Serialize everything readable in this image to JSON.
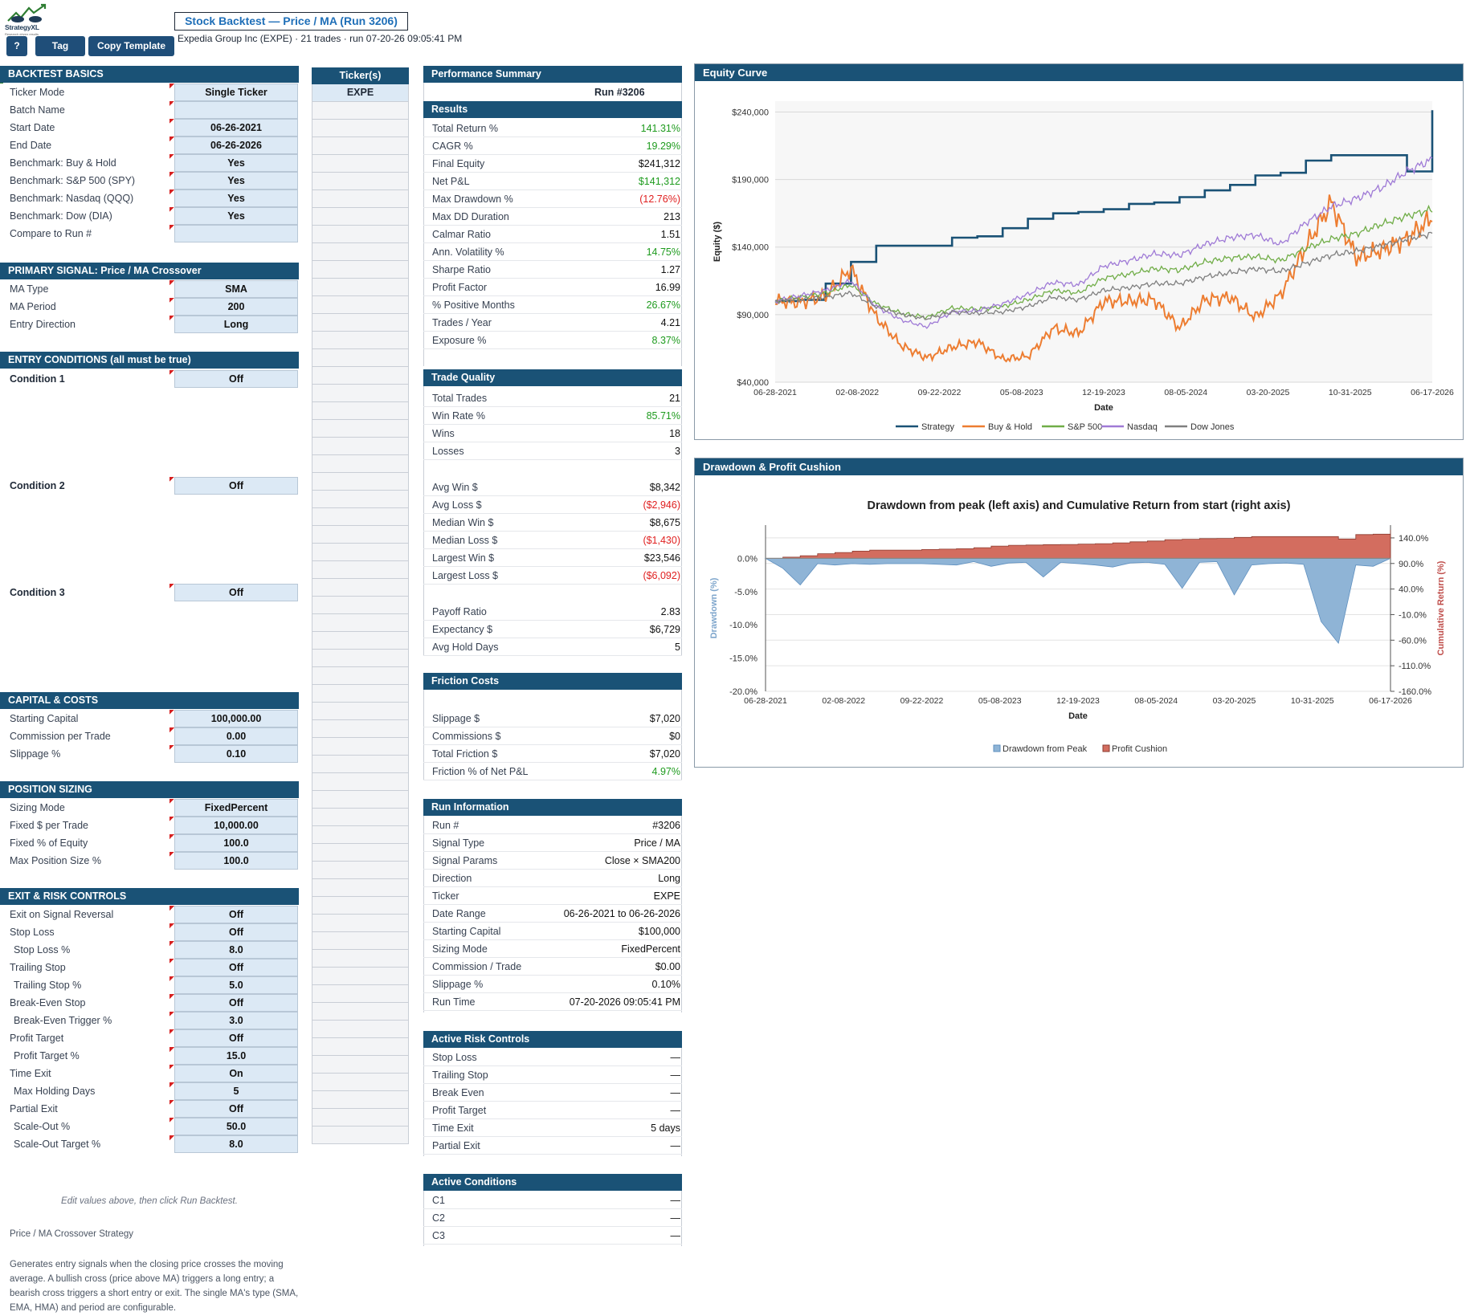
{
  "header": {
    "logo_text": "StrategyXL",
    "logo_sub": "Research driven results",
    "title": "Stock Backtest — Price / MA  (Run 3206)",
    "subtitle": "Expedia Group Inc (EXPE) · 21 trades · run 07-20-26 09:05:41 PM",
    "buttons": {
      "help": "?",
      "tag": "Tag",
      "copy": "Copy Template"
    }
  },
  "colors": {
    "header_bg": "#1a5276",
    "input_bg": "#dce9f5",
    "positive": "#1e9b1e",
    "negative": "#e02020",
    "strategy": "#1a5276",
    "buy_hold": "#ed7d31",
    "sp500": "#70ad47",
    "nasdaq": "#9f7ad6",
    "dow": "#7f7f7f"
  },
  "basics": {
    "title": "BACKTEST BASICS",
    "rows": [
      {
        "label": "Ticker Mode",
        "value": "Single Ticker"
      },
      {
        "label": "Batch Name",
        "value": ""
      },
      {
        "label": "Start Date",
        "value": "06-26-2021"
      },
      {
        "label": "End Date",
        "value": "06-26-2026"
      },
      {
        "label": "Benchmark: Buy & Hold",
        "value": "Yes"
      },
      {
        "label": "Benchmark: S&P 500 (SPY)",
        "value": "Yes"
      },
      {
        "label": "Benchmark: Nasdaq (QQQ)",
        "value": "Yes"
      },
      {
        "label": "Benchmark: Dow (DIA)",
        "value": "Yes"
      },
      {
        "label": "Compare to Run #",
        "value": ""
      }
    ]
  },
  "primary": {
    "title": "PRIMARY SIGNAL: Price / MA Crossover",
    "rows": [
      {
        "label": "MA Type",
        "value": "SMA"
      },
      {
        "label": "MA Period",
        "value": "200"
      },
      {
        "label": "Entry Direction",
        "value": "Long"
      }
    ]
  },
  "entry": {
    "title": "ENTRY CONDITIONS (all must be true)",
    "conditions": [
      {
        "label": "Condition 1",
        "value": "Off"
      },
      {
        "label": "Condition 2",
        "value": "Off"
      },
      {
        "label": "Condition 3",
        "value": "Off"
      }
    ]
  },
  "capital": {
    "title": "CAPITAL & COSTS",
    "rows": [
      {
        "label": "Starting Capital",
        "value": "100,000.00"
      },
      {
        "label": "Commission per Trade",
        "value": "0.00"
      },
      {
        "label": "Slippage %",
        "value": "0.10"
      }
    ]
  },
  "sizing": {
    "title": "POSITION SIZING",
    "rows": [
      {
        "label": "Sizing Mode",
        "value": "FixedPercent"
      },
      {
        "label": "Fixed $ per Trade",
        "value": "10,000.00"
      },
      {
        "label": "Fixed % of Equity",
        "value": "100.0"
      },
      {
        "label": "Max Position Size %",
        "value": "100.0"
      }
    ]
  },
  "exit": {
    "title": "EXIT & RISK CONTROLS",
    "rows": [
      {
        "label": "Exit on Signal Reversal",
        "value": "Off",
        "indent": false
      },
      {
        "label": "Stop Loss",
        "value": "Off",
        "indent": false
      },
      {
        "label": "Stop Loss %",
        "value": "8.0",
        "indent": true
      },
      {
        "label": "Trailing Stop",
        "value": "Off",
        "indent": false
      },
      {
        "label": "Trailing Stop %",
        "value": "5.0",
        "indent": true
      },
      {
        "label": "Break-Even Stop",
        "value": "Off",
        "indent": false
      },
      {
        "label": "Break-Even Trigger %",
        "value": "3.0",
        "indent": true
      },
      {
        "label": "Profit Target",
        "value": "Off",
        "indent": false
      },
      {
        "label": "Profit Target %",
        "value": "15.0",
        "indent": true
      },
      {
        "label": "Time Exit",
        "value": "On",
        "indent": false
      },
      {
        "label": "Max Holding Days",
        "value": "5",
        "indent": true
      },
      {
        "label": "Partial Exit",
        "value": "Off",
        "indent": false
      },
      {
        "label": "Scale-Out %",
        "value": "50.0",
        "indent": true
      },
      {
        "label": "Scale-Out Target %",
        "value": "8.0",
        "indent": true
      }
    ]
  },
  "notes": {
    "edit_hint": "Edit values above, then click Run Backtest.",
    "strategy_title": "Price / MA Crossover Strategy",
    "strategy_desc": "Generates entry signals when the closing price crosses the moving average. A bullish cross (price above MA) triggers a long entry; a bearish cross triggers a short entry or exit. The single MA's type (SMA, EMA, HMA) and period are configurable."
  },
  "tickers": {
    "header": "Ticker(s)",
    "values": [
      "EXPE"
    ]
  },
  "performance": {
    "title": "Performance Summary",
    "run_label": "Run #3206",
    "results_title": "Results",
    "results": [
      {
        "label": "Total Return %",
        "value": "141.31%",
        "tone": "pos"
      },
      {
        "label": "CAGR %",
        "value": "19.29%",
        "tone": "pos"
      },
      {
        "label": "Final Equity",
        "value": "$241,312",
        "tone": ""
      },
      {
        "label": "Net P&L",
        "value": "$141,312",
        "tone": "pos"
      },
      {
        "label": "Max Drawdown %",
        "value": "(12.76%)",
        "tone": "neg"
      },
      {
        "label": "Max DD Duration",
        "value": "213",
        "tone": ""
      },
      {
        "label": "Calmar Ratio",
        "value": "1.51",
        "tone": ""
      },
      {
        "label": "Ann. Volatility %",
        "value": "14.75%",
        "tone": "pos"
      },
      {
        "label": "Sharpe Ratio",
        "value": "1.27",
        "tone": ""
      },
      {
        "label": "Profit Factor",
        "value": "16.99",
        "tone": ""
      },
      {
        "label": "% Positive Months",
        "value": "26.67%",
        "tone": "pos"
      },
      {
        "label": "Trades / Year",
        "value": "4.21",
        "tone": ""
      },
      {
        "label": "Exposure %",
        "value": "8.37%",
        "tone": "pos"
      }
    ],
    "quality_title": "Trade Quality",
    "quality_a": [
      {
        "label": "Total Trades",
        "value": "21",
        "tone": ""
      },
      {
        "label": "Win Rate %",
        "value": "85.71%",
        "tone": "pos"
      },
      {
        "label": "Wins",
        "value": "18",
        "tone": ""
      },
      {
        "label": "Losses",
        "value": "3",
        "tone": ""
      }
    ],
    "quality_b": [
      {
        "label": "Avg Win $",
        "value": "$8,342",
        "tone": ""
      },
      {
        "label": "Avg Loss $",
        "value": "($2,946)",
        "tone": "neg"
      },
      {
        "label": "Median Win $",
        "value": "$8,675",
        "tone": ""
      },
      {
        "label": "Median Loss $",
        "value": "($1,430)",
        "tone": "neg"
      },
      {
        "label": "Largest Win $",
        "value": "$23,546",
        "tone": ""
      },
      {
        "label": "Largest Loss $",
        "value": "($6,092)",
        "tone": "neg"
      }
    ],
    "quality_c": [
      {
        "label": "Payoff Ratio",
        "value": "2.83",
        "tone": ""
      },
      {
        "label": "Expectancy $",
        "value": "$6,729",
        "tone": ""
      },
      {
        "label": "Avg Hold Days",
        "value": "5",
        "tone": ""
      }
    ],
    "friction_title": "Friction Costs",
    "friction": [
      {
        "label": "Slippage $",
        "value": "$7,020",
        "tone": ""
      },
      {
        "label": "Commissions $",
        "value": "$0",
        "tone": ""
      },
      {
        "label": "Total Friction $",
        "value": "$7,020",
        "tone": ""
      },
      {
        "label": "Friction % of Net P&L",
        "value": "4.97%",
        "tone": "pos"
      }
    ],
    "runinfo_title": "Run Information",
    "runinfo": [
      {
        "label": "Run #",
        "value": "#3206",
        "tone": ""
      },
      {
        "label": "Signal Type",
        "value": "Price / MA",
        "tone": ""
      },
      {
        "label": "Signal Params",
        "value": "Close × SMA200",
        "tone": ""
      },
      {
        "label": "Direction",
        "value": "Long",
        "tone": ""
      },
      {
        "label": "Ticker",
        "value": "EXPE",
        "tone": ""
      },
      {
        "label": "Date Range",
        "value": "06-26-2021 to 06-26-2026",
        "tone": ""
      },
      {
        "label": "Starting Capital",
        "value": "$100,000",
        "tone": ""
      },
      {
        "label": "Sizing Mode",
        "value": "FixedPercent",
        "tone": ""
      },
      {
        "label": "Commission / Trade",
        "value": "$0.00",
        "tone": ""
      },
      {
        "label": "Slippage %",
        "value": "0.10%",
        "tone": ""
      },
      {
        "label": "Run Time",
        "value": "07-20-2026 09:05:41 PM",
        "tone": ""
      }
    ],
    "risk_title": "Active Risk Controls",
    "risk": [
      {
        "label": "Stop Loss",
        "value": "—",
        "tone": ""
      },
      {
        "label": "Trailing Stop",
        "value": "—",
        "tone": ""
      },
      {
        "label": "Break Even",
        "value": "—",
        "tone": ""
      },
      {
        "label": "Profit Target",
        "value": "—",
        "tone": ""
      },
      {
        "label": "Time Exit",
        "value": "5 days",
        "tone": ""
      },
      {
        "label": "Partial Exit",
        "value": "—",
        "tone": ""
      }
    ],
    "cond_title": "Active Conditions",
    "conds": [
      {
        "label": "C1",
        "value": "—",
        "tone": ""
      },
      {
        "label": "C2",
        "value": "—",
        "tone": ""
      },
      {
        "label": "C3",
        "value": "—",
        "tone": ""
      }
    ]
  },
  "chart_data": [
    {
      "type": "line",
      "panel_title": "Equity Curve",
      "title": "",
      "xlabel": "Date",
      "ylabel": "Equity ($)",
      "ylim": [
        40000,
        255000
      ],
      "y_ticks": [
        "$240,000",
        "$190,000",
        "$140,000",
        "$90,000",
        "$40,000"
      ],
      "y_tick_values": [
        240000,
        190000,
        140000,
        90000,
        40000
      ],
      "x_ticks": [
        "06-28-2021",
        "02-08-2022",
        "09-22-2022",
        "05-08-2023",
        "12-19-2023",
        "08-05-2024",
        "03-20-2025",
        "10-31-2025",
        "06-17-2026"
      ],
      "grid": true,
      "legend": "bottom",
      "series": [
        {
          "name": "Strategy",
          "color": "#1a5276",
          "values": [
            100000,
            101000,
            113000,
            129000,
            141000,
            141000,
            141000,
            147000,
            148000,
            154000,
            161000,
            165000,
            166000,
            168000,
            172000,
            173000,
            177000,
            182000,
            186000,
            193000,
            195000,
            204000,
            208000,
            208000,
            208000,
            196000,
            241312
          ]
        },
        {
          "name": "Buy & Hold",
          "color": "#ed7d31",
          "values": [
            100000,
            99000,
            104000,
            124000,
            88000,
            67000,
            58000,
            66000,
            70000,
            57000,
            59000,
            80000,
            76000,
            100000,
            100000,
            101000,
            80000,
            101000,
            103000,
            88000,
            105000,
            140000,
            173000,
            132000,
            138000,
            146000,
            162000
          ]
        },
        {
          "name": "S&P 500",
          "color": "#70ad47",
          "values": [
            100000,
            103000,
            106000,
            112000,
            98000,
            91000,
            88000,
            95000,
            94000,
            96000,
            101000,
            108000,
            106000,
            117000,
            120000,
            124000,
            123000,
            129000,
            132000,
            133000,
            130000,
            139000,
            146000,
            150000,
            157000,
            163000,
            168000
          ]
        },
        {
          "name": "Nasdaq",
          "color": "#9f7ad6",
          "values": [
            100000,
            104000,
            108000,
            115000,
            96000,
            86000,
            81000,
            92000,
            93000,
            98000,
            105000,
            114000,
            112000,
            126000,
            130000,
            135000,
            134000,
            142000,
            147000,
            149000,
            142000,
            158000,
            170000,
            176000,
            184000,
            196000,
            205000
          ]
        },
        {
          "name": "Dow Jones",
          "color": "#7f7f7f",
          "values": [
            100000,
            101000,
            103000,
            106000,
            96000,
            90000,
            87000,
            92000,
            91000,
            92000,
            96000,
            103000,
            101000,
            108000,
            110000,
            113000,
            113000,
            118000,
            121000,
            124000,
            122000,
            128000,
            134000,
            137000,
            141000,
            146000,
            150000
          ]
        }
      ]
    },
    {
      "type": "area",
      "panel_title": "Drawdown & Profit Cushion",
      "title": "Drawdown from peak (left axis) and Cumulative Return from start (right axis)",
      "xlabel": "Date",
      "ylabel": "Drawdown (%)",
      "y2label": "Cumulative Return (%)",
      "ylim": [
        -20,
        5
      ],
      "y_ticks": [
        "0.0%",
        "-5.0%",
        "-10.0%",
        "-15.0%",
        "-20.0%"
      ],
      "y_tick_values": [
        0,
        -5,
        -10,
        -15,
        -20
      ],
      "y2lim": [
        -160,
        165
      ],
      "y2_ticks": [
        "140.0%",
        "90.0%",
        "40.0%",
        "-10.0%",
        "-60.0%",
        "-110.0%",
        "-160.0%"
      ],
      "y2_tick_values": [
        140,
        90,
        40,
        -10,
        -60,
        -110,
        -160
      ],
      "x_ticks": [
        "06-28-2021",
        "02-08-2022",
        "09-22-2022",
        "05-08-2023",
        "12-19-2023",
        "08-05-2024",
        "03-20-2025",
        "10-31-2025",
        "06-17-2026"
      ],
      "grid": true,
      "legend": "bottom",
      "series": [
        {
          "name": "Drawdown from Peak",
          "color": "#8fb4d6",
          "values": [
            0,
            -1.5,
            -4.0,
            -0.8,
            -1.0,
            -0.8,
            -0.9,
            -0.8,
            -0.8,
            -0.8,
            -0.9,
            -1.0,
            -0.5,
            -1.2,
            -0.7,
            -0.6,
            -2.8,
            -0.6,
            -0.8,
            -1.0,
            -1.3,
            -0.7,
            -0.6,
            -0.9,
            -4.5,
            -0.6,
            -0.5,
            -5.5,
            -1.0,
            -0.8,
            -0.7,
            -0.9,
            -9.5,
            -12.76,
            -1.0,
            -1.2,
            0
          ]
        },
        {
          "name": "Profit Cushion",
          "color": "#d36d5f",
          "values": [
            0,
            6,
            13,
            23,
            29,
            36,
            41,
            41,
            41,
            44,
            46,
            48,
            53,
            61,
            65,
            66,
            68,
            69,
            71,
            73,
            77,
            82,
            86,
            93,
            95,
            98,
            99,
            104,
            108,
            108,
            108,
            108,
            108,
            96,
            118,
            120,
            141.31
          ]
        }
      ]
    }
  ]
}
